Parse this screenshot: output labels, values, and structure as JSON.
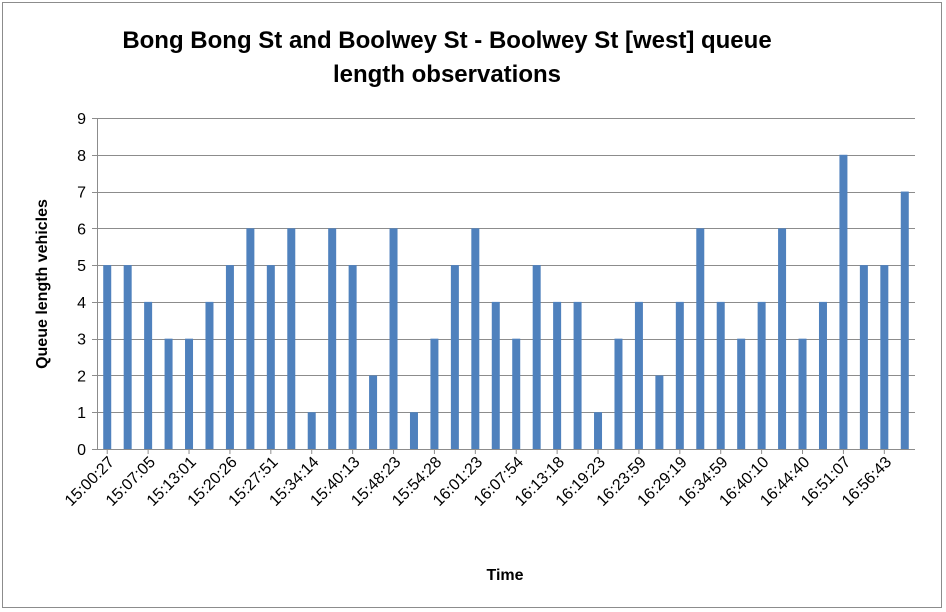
{
  "chart_data": {
    "type": "bar",
    "title_line1": "Bong Bong St and Boolwey St - Boolwey St [west] queue",
    "title_line2": "length observations",
    "xlabel": "Time",
    "ylabel": "Queue length vehicles",
    "ylim": [
      0,
      9
    ],
    "yticks": [
      0,
      1,
      2,
      3,
      4,
      5,
      6,
      7,
      8,
      9
    ],
    "grid": true,
    "series_color": "#4f81bd",
    "tick_labels": [
      "15:00:27",
      "15:07:05",
      "15:13:01",
      "15:20:26",
      "15:27:51",
      "15:34:14",
      "15:40:13",
      "15:48:23",
      "15:54:28",
      "16:01:23",
      "16:07:54",
      "16:13:18",
      "16:19:23",
      "16:23:59",
      "16:29:19",
      "16:34:59",
      "16:40:10",
      "16:44:40",
      "16:51:07",
      "16:56:43"
    ],
    "values": [
      5,
      5,
      4,
      3,
      3,
      4,
      5,
      6,
      5,
      6,
      1,
      6,
      5,
      2,
      6,
      1,
      3,
      5,
      6,
      4,
      3,
      5,
      4,
      4,
      1,
      3,
      4,
      2,
      4,
      6,
      4,
      3,
      4,
      6,
      3,
      4,
      8,
      5,
      5,
      7
    ]
  }
}
